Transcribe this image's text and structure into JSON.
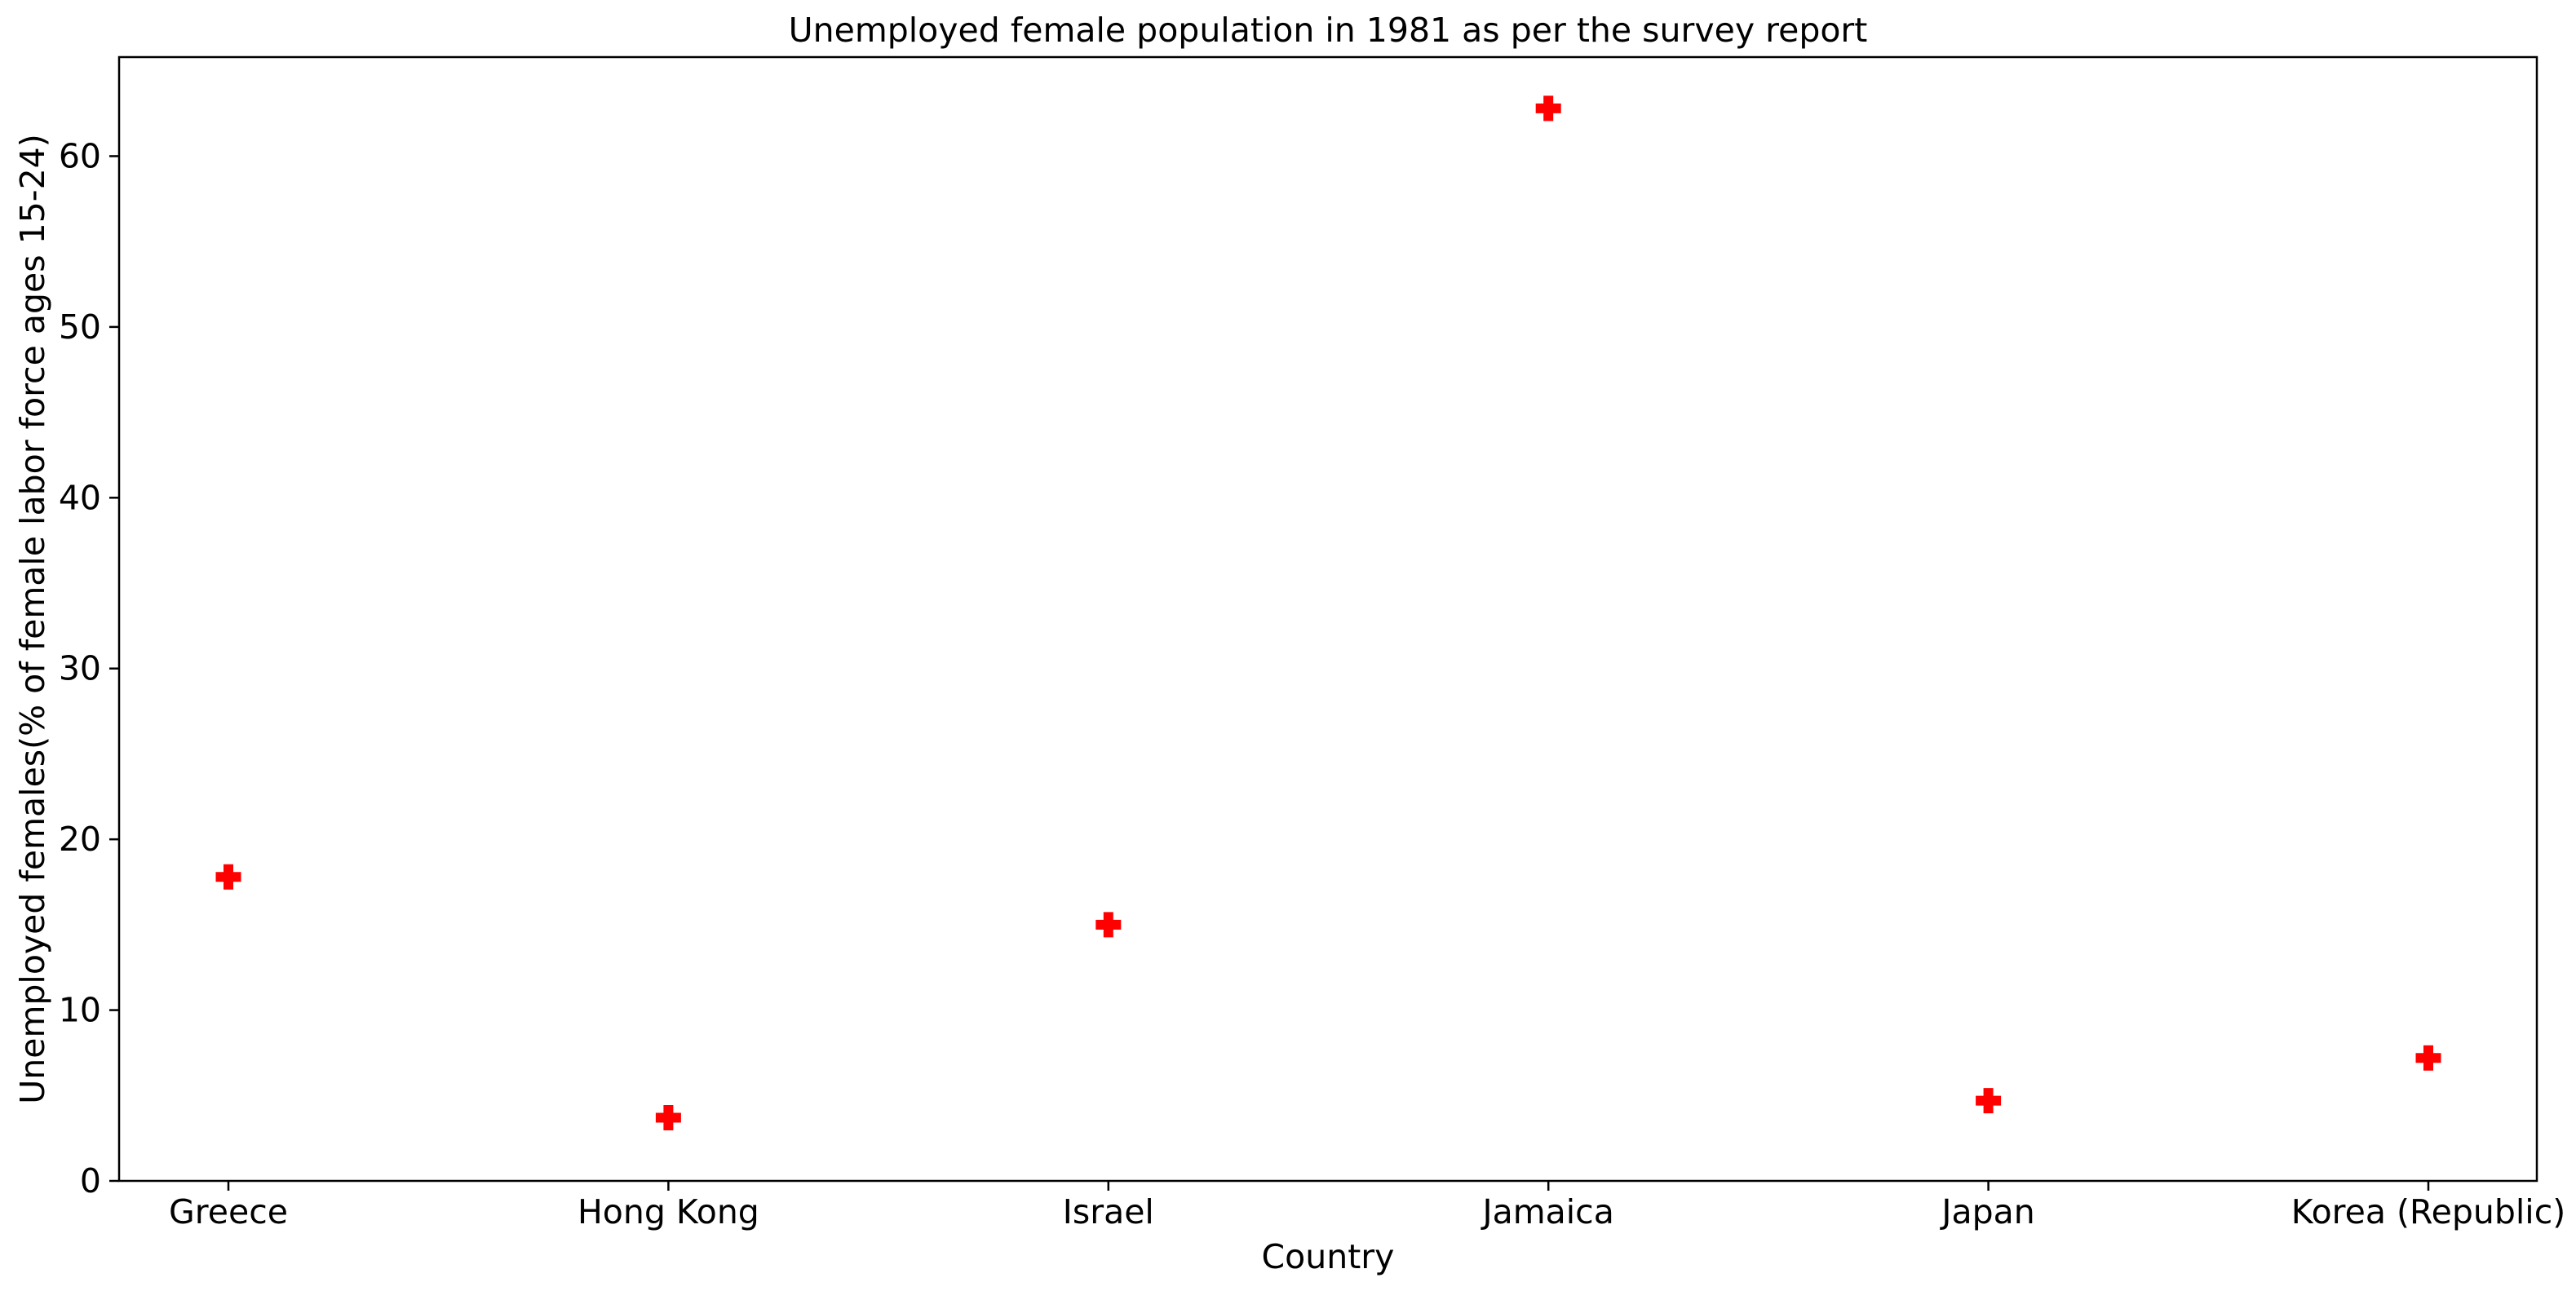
{
  "chart_data": {
    "type": "scatter",
    "title": "Unemployed female population in 1981 as per the survey report",
    "xlabel": "Country",
    "ylabel": "Unemployed females(% of female labor force ages 15-24)",
    "categories": [
      "Greece",
      "Hong Kong",
      "Israel",
      "Jamaica",
      "Japan",
      "Korea (Republic)"
    ],
    "series": [
      {
        "values": [
          17.8,
          3.7,
          15.0,
          62.8,
          4.7,
          7.2
        ],
        "color": "#ff0000",
        "marker": "plus-filled"
      }
    ],
    "ylim": [
      0,
      65.8
    ],
    "yticks": [
      0,
      10,
      20,
      30,
      40,
      50,
      60
    ],
    "grid": false,
    "legend": "none"
  }
}
